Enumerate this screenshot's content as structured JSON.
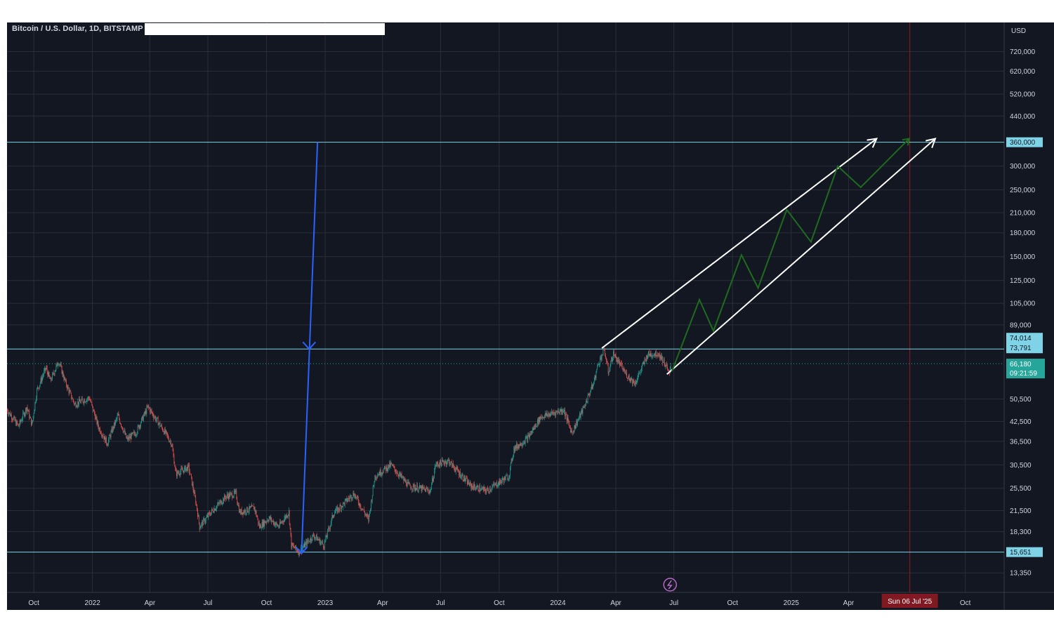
{
  "header": {
    "title": "Bitcoin / U.S. Dollar, 1D, BITSTAMP",
    "currency": "USD"
  },
  "colors": {
    "background": "#131722",
    "grid": "#2a2e39",
    "level_line": "#7fd3e6",
    "candle_up": "#26a69a",
    "candle_down": "#ef5350",
    "projection": "#1e6b1e",
    "channel": "#ffffff",
    "arrow_blue": "#2962ff",
    "date_marker": "#801922",
    "price_tag": "#26a69a"
  },
  "chart_data": {
    "type": "line",
    "scale": "log",
    "x_range": [
      "2021-08-20",
      "2025-12-01"
    ],
    "y_range": [
      11500,
      900000
    ],
    "y_ticks": [
      {
        "value": 720000,
        "label": "720,000"
      },
      {
        "value": 620000,
        "label": "620,000"
      },
      {
        "value": 520000,
        "label": "520,000"
      },
      {
        "value": 440000,
        "label": "440,000"
      },
      {
        "value": 300000,
        "label": "300,000"
      },
      {
        "value": 250000,
        "label": "250,000"
      },
      {
        "value": 210000,
        "label": "210,000"
      },
      {
        "value": 180000,
        "label": "180,000"
      },
      {
        "value": 150000,
        "label": "150,000"
      },
      {
        "value": 125000,
        "label": "125,000"
      },
      {
        "value": 105000,
        "label": "105,000"
      },
      {
        "value": 89000,
        "label": "89,000"
      },
      {
        "value": 50500,
        "label": "50,500"
      },
      {
        "value": 42500,
        "label": "42,500"
      },
      {
        "value": 36500,
        "label": "36,500"
      },
      {
        "value": 30500,
        "label": "30,500"
      },
      {
        "value": 25500,
        "label": "25,500"
      },
      {
        "value": 21500,
        "label": "21,500"
      },
      {
        "value": 18300,
        "label": "18,300"
      },
      {
        "value": 13350,
        "label": "13,350"
      }
    ],
    "x_ticks": [
      {
        "date": "2021-10-01",
        "label": "Oct"
      },
      {
        "date": "2022-01-01",
        "label": "2022"
      },
      {
        "date": "2022-04-01",
        "label": "Apr"
      },
      {
        "date": "2022-07-01",
        "label": "Jul"
      },
      {
        "date": "2022-10-01",
        "label": "Oct"
      },
      {
        "date": "2023-01-01",
        "label": "2023"
      },
      {
        "date": "2023-04-01",
        "label": "Apr"
      },
      {
        "date": "2023-07-01",
        "label": "Jul"
      },
      {
        "date": "2023-10-01",
        "label": "Oct"
      },
      {
        "date": "2024-01-01",
        "label": "2024"
      },
      {
        "date": "2024-04-01",
        "label": "Apr"
      },
      {
        "date": "2024-07-01",
        "label": "Jul"
      },
      {
        "date": "2024-10-01",
        "label": "Oct"
      },
      {
        "date": "2025-01-01",
        "label": "2025"
      },
      {
        "date": "2025-04-01",
        "label": "Apr"
      },
      {
        "date": "2025-10-01",
        "label": "Oct"
      }
    ],
    "horizontal_levels": [
      {
        "value": 360000,
        "label": "360,000"
      },
      {
        "value": 74014,
        "label": "74,014"
      },
      {
        "value": 73791,
        "label": "73,791"
      },
      {
        "value": 15651,
        "label": "15,651"
      }
    ],
    "current_price": {
      "value": 66180,
      "label": "66,180",
      "countdown": "09:21:59"
    },
    "date_marker": {
      "date": "2025-07-06",
      "label": "Sun 06 Jul '25"
    },
    "price_path": [
      [
        "2021-08-20",
        46500
      ],
      [
        "2021-09-07",
        41000
      ],
      [
        "2021-09-20",
        47500
      ],
      [
        "2021-09-28",
        41500
      ],
      [
        "2021-10-06",
        54000
      ],
      [
        "2021-10-20",
        64000
      ],
      [
        "2021-10-27",
        58000
      ],
      [
        "2021-11-09",
        67500
      ],
      [
        "2021-11-20",
        57000
      ],
      [
        "2021-12-04",
        48500
      ],
      [
        "2021-12-27",
        51000
      ],
      [
        "2022-01-10",
        41000
      ],
      [
        "2022-01-24",
        36000
      ],
      [
        "2022-02-10",
        44500
      ],
      [
        "2022-02-24",
        37000
      ],
      [
        "2022-03-10",
        39000
      ],
      [
        "2022-03-29",
        47500
      ],
      [
        "2022-04-25",
        39000
      ],
      [
        "2022-05-05",
        36000
      ],
      [
        "2022-05-12",
        28500
      ],
      [
        "2022-06-01",
        30000
      ],
      [
        "2022-06-13",
        22500
      ],
      [
        "2022-06-18",
        19000
      ],
      [
        "2022-07-08",
        21500
      ],
      [
        "2022-07-30",
        24000
      ],
      [
        "2022-08-14",
        24500
      ],
      [
        "2022-08-20",
        21200
      ],
      [
        "2022-09-12",
        22000
      ],
      [
        "2022-09-20",
        19000
      ],
      [
        "2022-10-05",
        20300
      ],
      [
        "2022-10-20",
        19000
      ],
      [
        "2022-11-05",
        21300
      ],
      [
        "2022-11-09",
        16500
      ],
      [
        "2022-11-21",
        15700
      ],
      [
        "2022-12-14",
        17800
      ],
      [
        "2022-12-30",
        16500
      ],
      [
        "2023-01-14",
        21000
      ],
      [
        "2023-02-15",
        24500
      ],
      [
        "2023-03-10",
        20000
      ],
      [
        "2023-03-20",
        28000
      ],
      [
        "2023-04-14",
        30500
      ],
      [
        "2023-05-12",
        26000
      ],
      [
        "2023-06-15",
        25000
      ],
      [
        "2023-06-23",
        30500
      ],
      [
        "2023-07-13",
        31500
      ],
      [
        "2023-08-17",
        26000
      ],
      [
        "2023-09-11",
        25000
      ],
      [
        "2023-10-16",
        28000
      ],
      [
        "2023-10-24",
        34500
      ],
      [
        "2023-11-15",
        37500
      ],
      [
        "2023-12-05",
        44000
      ],
      [
        "2024-01-10",
        46500
      ],
      [
        "2024-01-23",
        39000
      ],
      [
        "2024-02-10",
        47000
      ],
      [
        "2024-02-26",
        57000
      ],
      [
        "2024-03-05",
        67000
      ],
      [
        "2024-03-14",
        73500
      ],
      [
        "2024-03-20",
        62000
      ],
      [
        "2024-03-28",
        71500
      ],
      [
        "2024-04-17",
        61000
      ],
      [
        "2024-05-01",
        57000
      ],
      [
        "2024-05-21",
        71000
      ],
      [
        "2024-06-07",
        71500
      ],
      [
        "2024-06-18",
        65500
      ],
      [
        "2024-06-24",
        60500
      ],
      [
        "2024-06-26",
        66180
      ]
    ],
    "projection_zigzag": [
      [
        "2024-06-28",
        62500
      ],
      [
        "2024-08-10",
        108000
      ],
      [
        "2024-09-01",
        85000
      ],
      [
        "2024-10-15",
        152000
      ],
      [
        "2024-11-10",
        118000
      ],
      [
        "2024-12-25",
        215000
      ],
      [
        "2025-02-01",
        168000
      ],
      [
        "2025-03-15",
        300000
      ],
      [
        "2025-04-20",
        255000
      ],
      [
        "2025-07-05",
        370000
      ]
    ],
    "channel_lines": [
      {
        "from": [
          "2024-03-10",
          74500
        ],
        "to": [
          "2025-05-15",
          370000
        ]
      },
      {
        "from": [
          "2024-06-20",
          61000
        ],
        "to": [
          "2025-08-15",
          370000
        ]
      }
    ],
    "blue_arrow": {
      "from": [
        "2022-12-20",
        360000
      ],
      "to": [
        "2022-11-25",
        15500
      ],
      "mid_marker": [
        "2022-12-07",
        74000
      ]
    }
  }
}
